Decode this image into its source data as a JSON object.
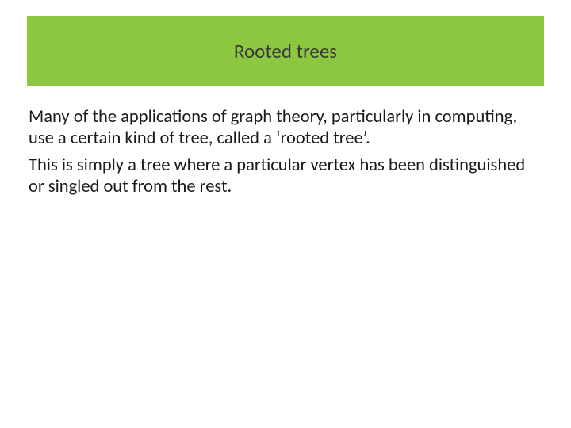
{
  "slide": {
    "title": "Rooted trees",
    "paragraphs": [
      "Many of the applications of graph theory, particularly in computing, use a certain kind of tree, called a ‘rooted tree’.",
      "This is simply a tree where a particular vertex has been distinguished or singled out from the rest."
    ]
  },
  "style": {
    "title_band_color": "#8dc63f",
    "title_text_color": "#3b3b3b",
    "body_text_color": "#1a1a1a",
    "background_color": "#ffffff",
    "title_fontsize": 25,
    "body_fontsize": 22.5,
    "slide_width": 720,
    "slide_height": 540
  }
}
